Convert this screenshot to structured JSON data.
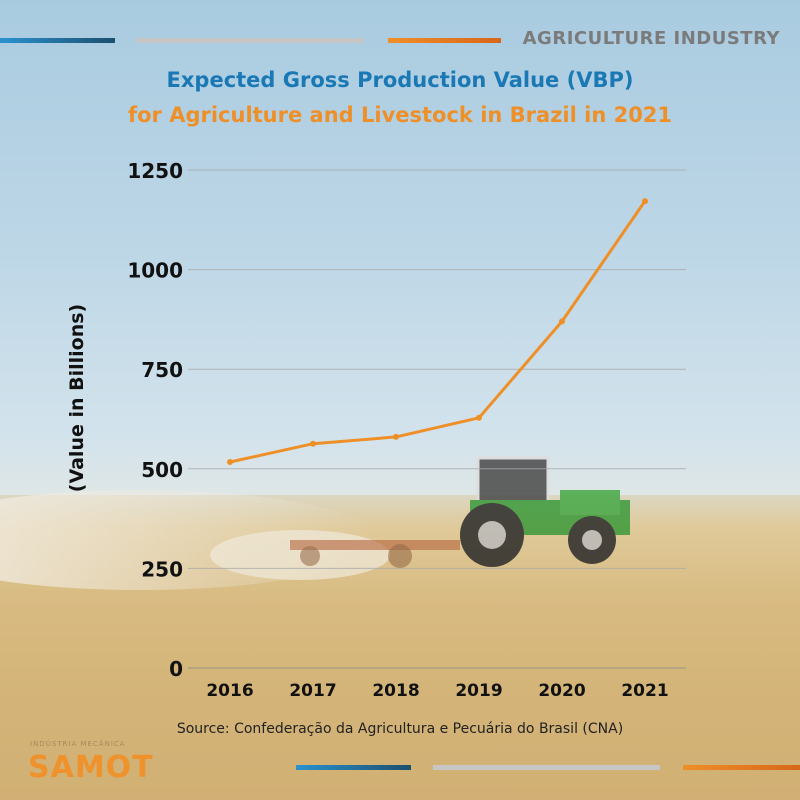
{
  "header": {
    "tag": "AGRICULTURE INDUSTRY",
    "title_line1": "Expected Gross Production Value (VBP)",
    "title_line2": "for Agriculture and Livestock in Brazil in 2021"
  },
  "source": "Source: Confederação da Agricultura e Pecuária do Brasil (CNA)",
  "brand": {
    "name": "SAMOT",
    "subtitle": "INDÚSTRIA MECÂNICA"
  },
  "colors": {
    "blue": "#1a78b5",
    "orange": "#ef8f28",
    "grey": "#c6c6c6",
    "navy": "#1d4f6e"
  },
  "chart_data": {
    "type": "line",
    "title": "Expected Gross Production Value (VBP) for Agriculture and Livestock in Brazil in 2021",
    "xlabel": "",
    "ylabel": "(Value in Billions)",
    "categories": [
      "2016",
      "2017",
      "2018",
      "2019",
      "2020",
      "2021"
    ],
    "series": [
      {
        "values": [
          517,
          563,
          580,
          628,
          870,
          1172
        ]
      }
    ],
    "ylim": [
      0,
      1250
    ],
    "yticks": [
      0,
      250,
      500,
      750,
      1000,
      1250
    ],
    "grid": true,
    "legend": "none"
  }
}
